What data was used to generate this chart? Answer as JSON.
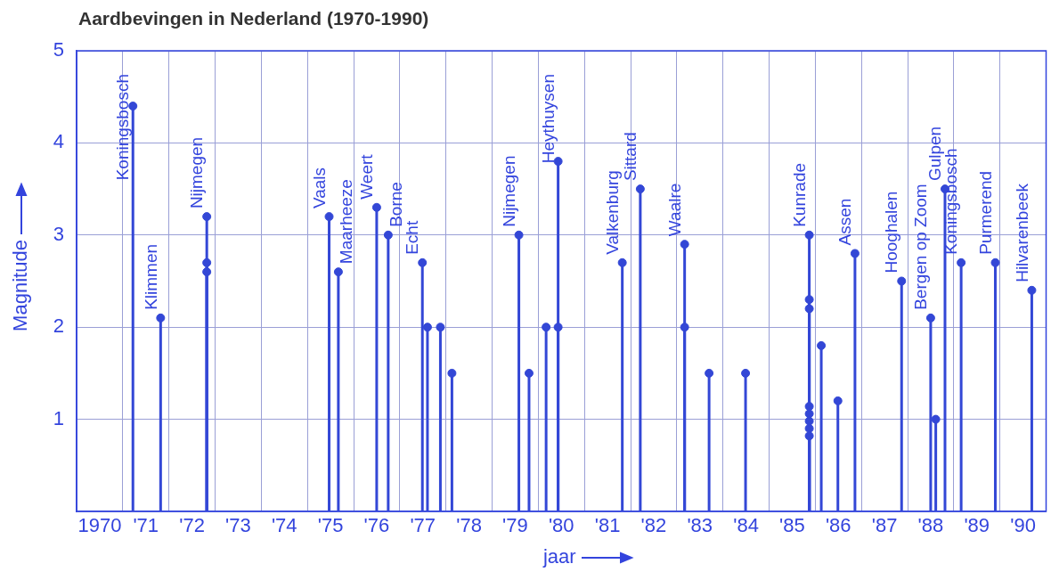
{
  "chart_data": {
    "type": "lollipop",
    "title": "Aardbevingen in Nederland (1970-1990)",
    "xlabel": "jaar",
    "ylabel": "Magnitude",
    "x": [
      1970.72,
      1971.32,
      1972.32,
      1972.32,
      1972.32,
      1974.97,
      1975.17,
      1976.0,
      1976.25,
      1976.99,
      1977.1,
      1977.38,
      1977.63,
      1979.08,
      1979.3,
      1979.67,
      1979.93,
      1979.93,
      1981.32,
      1981.71,
      1982.67,
      1982.67,
      1983.2,
      1983.99,
      1985.37,
      1985.37,
      1985.37,
      1985.37,
      1985.37,
      1985.37,
      1985.37,
      1985.37,
      1985.63,
      1985.99,
      1986.36,
      1987.37,
      1988.0,
      1988.11,
      1988.31,
      1988.66,
      1989.4,
      1990.19
    ],
    "series": [
      {
        "color": "#3347d6",
        "values": [
          4.4,
          2.1,
          3.2,
          2.7,
          2.6,
          3.2,
          2.6,
          3.3,
          3.0,
          2.7,
          2.0,
          2.0,
          1.5,
          3.0,
          1.5,
          2.0,
          3.8,
          2.0,
          2.7,
          3.5,
          2.9,
          2.0,
          1.5,
          1.5,
          3.0,
          2.3,
          2.2,
          1.14,
          1.06,
          0.98,
          0.9,
          0.82,
          1.8,
          1.2,
          2.8,
          2.5,
          2.1,
          1.0,
          3.5,
          2.7,
          2.7,
          2.4
        ]
      }
    ],
    "annotations": [
      {
        "text": "Koningsbosch",
        "x": 1970.72,
        "y": 4.4
      },
      {
        "text": "Klimmen",
        "x": 1971.32,
        "y": 2.1
      },
      {
        "text": "Nijmegen",
        "x": 1972.32,
        "y": 3.2
      },
      {
        "text": "Vaals",
        "x": 1974.97,
        "y": 3.2
      },
      {
        "text": "Maarheeze",
        "x": 1975.17,
        "y": 2.6
      },
      {
        "text": "Weert",
        "x": 1976.0,
        "y": 3.3
      },
      {
        "text": "Borne",
        "x": 1976.25,
        "y": 3.0
      },
      {
        "text": "Echt",
        "x": 1976.99,
        "y": 2.7
      },
      {
        "text": "Nijmegen",
        "x": 1979.08,
        "y": 3.0
      },
      {
        "text": "Heythuysen",
        "x": 1979.93,
        "y": 3.8
      },
      {
        "text": "Valkenburg",
        "x": 1981.32,
        "y": 2.7
      },
      {
        "text": "Sittard",
        "x": 1981.71,
        "y": 3.5
      },
      {
        "text": "Waalre",
        "x": 1982.67,
        "y": 2.9
      },
      {
        "text": "Kunrade",
        "x": 1985.37,
        "y": 3.0
      },
      {
        "text": "Assen",
        "x": 1986.36,
        "y": 2.8
      },
      {
        "text": "Hooghalen",
        "x": 1987.37,
        "y": 2.5
      },
      {
        "text": "Bergen op Zoom",
        "x": 1988.0,
        "y": 2.1
      },
      {
        "text": "Gulpen",
        "x": 1988.31,
        "y": 3.5
      },
      {
        "text": "Koningsbosch",
        "x": 1988.66,
        "y": 2.7
      },
      {
        "text": "Purmerend",
        "x": 1989.4,
        "y": 2.7
      },
      {
        "text": "Hilvarenbeek",
        "x": 1990.19,
        "y": 2.4
      }
    ],
    "xlim": [
      1969.5,
      1990.5
    ],
    "xticks": [
      {
        "value": 1969.5,
        "label": null
      },
      {
        "value": 1970,
        "label": "1970"
      },
      {
        "value": 1970.5,
        "label": null
      },
      {
        "value": 1971,
        "label": "'71"
      },
      {
        "value": 1971.5,
        "label": null
      },
      {
        "value": 1972,
        "label": "'72"
      },
      {
        "value": 1972.5,
        "label": null
      },
      {
        "value": 1973,
        "label": "'73"
      },
      {
        "value": 1973.5,
        "label": null
      },
      {
        "value": 1974,
        "label": "'74"
      },
      {
        "value": 1974.5,
        "label": null
      },
      {
        "value": 1975,
        "label": "'75"
      },
      {
        "value": 1975.5,
        "label": null
      },
      {
        "value": 1976,
        "label": "'76"
      },
      {
        "value": 1976.5,
        "label": null
      },
      {
        "value": 1977,
        "label": "'77"
      },
      {
        "value": 1977.5,
        "label": null
      },
      {
        "value": 1978,
        "label": "'78"
      },
      {
        "value": 1978.5,
        "label": null
      },
      {
        "value": 1979,
        "label": "'79"
      },
      {
        "value": 1979.5,
        "label": null
      },
      {
        "value": 1980,
        "label": "'80"
      },
      {
        "value": 1980.5,
        "label": null
      },
      {
        "value": 1981,
        "label": "'81"
      },
      {
        "value": 1981.5,
        "label": null
      },
      {
        "value": 1982,
        "label": "'82"
      },
      {
        "value": 1982.5,
        "label": null
      },
      {
        "value": 1983,
        "label": "'83"
      },
      {
        "value": 1983.5,
        "label": null
      },
      {
        "value": 1984,
        "label": "'84"
      },
      {
        "value": 1984.5,
        "label": null
      },
      {
        "value": 1985,
        "label": "'85"
      },
      {
        "value": 1985.5,
        "label": null
      },
      {
        "value": 1986,
        "label": "'86"
      },
      {
        "value": 1986.5,
        "label": null
      },
      {
        "value": 1987,
        "label": "'87"
      },
      {
        "value": 1987.5,
        "label": null
      },
      {
        "value": 1988,
        "label": "'88"
      },
      {
        "value": 1988.5,
        "label": null
      },
      {
        "value": 1989,
        "label": "'89"
      },
      {
        "value": 1989.5,
        "label": null
      },
      {
        "value": 1990,
        "label": "'90"
      },
      {
        "value": 1990.5,
        "label": null
      }
    ],
    "ylim": [
      0,
      5
    ],
    "yticks": [
      1,
      2,
      3,
      4,
      5
    ],
    "grid": true,
    "marker": "circle"
  }
}
